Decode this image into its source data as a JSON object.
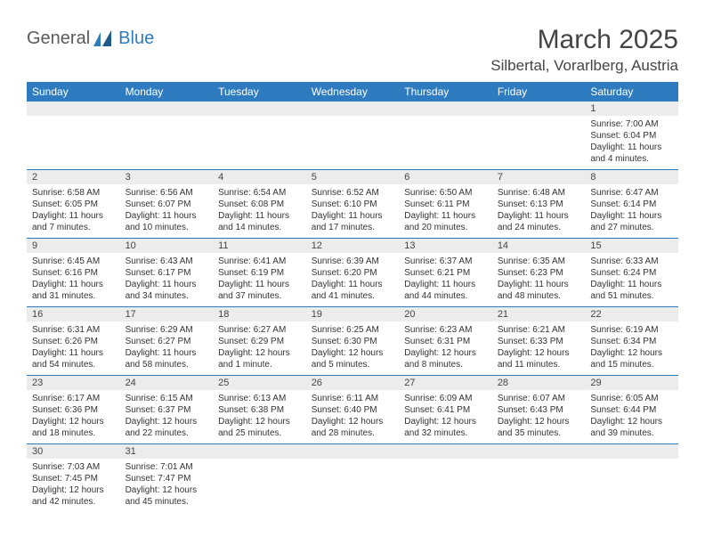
{
  "brand": {
    "part1": "General",
    "part2": "Blue"
  },
  "title": "March 2025",
  "location": "Silbertal, Vorarlberg, Austria",
  "colors": {
    "header_bg": "#2f7bbf",
    "header_fg": "#ffffff",
    "num_bg": "#ececec",
    "border": "#2f7bbf"
  },
  "day_names": [
    "Sunday",
    "Monday",
    "Tuesday",
    "Wednesday",
    "Thursday",
    "Friday",
    "Saturday"
  ],
  "weeks": [
    [
      null,
      null,
      null,
      null,
      null,
      null,
      {
        "n": "1",
        "sr": "Sunrise: 7:00 AM",
        "ss": "Sunset: 6:04 PM",
        "dl1": "Daylight: 11 hours",
        "dl2": "and 4 minutes."
      }
    ],
    [
      {
        "n": "2",
        "sr": "Sunrise: 6:58 AM",
        "ss": "Sunset: 6:05 PM",
        "dl1": "Daylight: 11 hours",
        "dl2": "and 7 minutes."
      },
      {
        "n": "3",
        "sr": "Sunrise: 6:56 AM",
        "ss": "Sunset: 6:07 PM",
        "dl1": "Daylight: 11 hours",
        "dl2": "and 10 minutes."
      },
      {
        "n": "4",
        "sr": "Sunrise: 6:54 AM",
        "ss": "Sunset: 6:08 PM",
        "dl1": "Daylight: 11 hours",
        "dl2": "and 14 minutes."
      },
      {
        "n": "5",
        "sr": "Sunrise: 6:52 AM",
        "ss": "Sunset: 6:10 PM",
        "dl1": "Daylight: 11 hours",
        "dl2": "and 17 minutes."
      },
      {
        "n": "6",
        "sr": "Sunrise: 6:50 AM",
        "ss": "Sunset: 6:11 PM",
        "dl1": "Daylight: 11 hours",
        "dl2": "and 20 minutes."
      },
      {
        "n": "7",
        "sr": "Sunrise: 6:48 AM",
        "ss": "Sunset: 6:13 PM",
        "dl1": "Daylight: 11 hours",
        "dl2": "and 24 minutes."
      },
      {
        "n": "8",
        "sr": "Sunrise: 6:47 AM",
        "ss": "Sunset: 6:14 PM",
        "dl1": "Daylight: 11 hours",
        "dl2": "and 27 minutes."
      }
    ],
    [
      {
        "n": "9",
        "sr": "Sunrise: 6:45 AM",
        "ss": "Sunset: 6:16 PM",
        "dl1": "Daylight: 11 hours",
        "dl2": "and 31 minutes."
      },
      {
        "n": "10",
        "sr": "Sunrise: 6:43 AM",
        "ss": "Sunset: 6:17 PM",
        "dl1": "Daylight: 11 hours",
        "dl2": "and 34 minutes."
      },
      {
        "n": "11",
        "sr": "Sunrise: 6:41 AM",
        "ss": "Sunset: 6:19 PM",
        "dl1": "Daylight: 11 hours",
        "dl2": "and 37 minutes."
      },
      {
        "n": "12",
        "sr": "Sunrise: 6:39 AM",
        "ss": "Sunset: 6:20 PM",
        "dl1": "Daylight: 11 hours",
        "dl2": "and 41 minutes."
      },
      {
        "n": "13",
        "sr": "Sunrise: 6:37 AM",
        "ss": "Sunset: 6:21 PM",
        "dl1": "Daylight: 11 hours",
        "dl2": "and 44 minutes."
      },
      {
        "n": "14",
        "sr": "Sunrise: 6:35 AM",
        "ss": "Sunset: 6:23 PM",
        "dl1": "Daylight: 11 hours",
        "dl2": "and 48 minutes."
      },
      {
        "n": "15",
        "sr": "Sunrise: 6:33 AM",
        "ss": "Sunset: 6:24 PM",
        "dl1": "Daylight: 11 hours",
        "dl2": "and 51 minutes."
      }
    ],
    [
      {
        "n": "16",
        "sr": "Sunrise: 6:31 AM",
        "ss": "Sunset: 6:26 PM",
        "dl1": "Daylight: 11 hours",
        "dl2": "and 54 minutes."
      },
      {
        "n": "17",
        "sr": "Sunrise: 6:29 AM",
        "ss": "Sunset: 6:27 PM",
        "dl1": "Daylight: 11 hours",
        "dl2": "and 58 minutes."
      },
      {
        "n": "18",
        "sr": "Sunrise: 6:27 AM",
        "ss": "Sunset: 6:29 PM",
        "dl1": "Daylight: 12 hours",
        "dl2": "and 1 minute."
      },
      {
        "n": "19",
        "sr": "Sunrise: 6:25 AM",
        "ss": "Sunset: 6:30 PM",
        "dl1": "Daylight: 12 hours",
        "dl2": "and 5 minutes."
      },
      {
        "n": "20",
        "sr": "Sunrise: 6:23 AM",
        "ss": "Sunset: 6:31 PM",
        "dl1": "Daylight: 12 hours",
        "dl2": "and 8 minutes."
      },
      {
        "n": "21",
        "sr": "Sunrise: 6:21 AM",
        "ss": "Sunset: 6:33 PM",
        "dl1": "Daylight: 12 hours",
        "dl2": "and 11 minutes."
      },
      {
        "n": "22",
        "sr": "Sunrise: 6:19 AM",
        "ss": "Sunset: 6:34 PM",
        "dl1": "Daylight: 12 hours",
        "dl2": "and 15 minutes."
      }
    ],
    [
      {
        "n": "23",
        "sr": "Sunrise: 6:17 AM",
        "ss": "Sunset: 6:36 PM",
        "dl1": "Daylight: 12 hours",
        "dl2": "and 18 minutes."
      },
      {
        "n": "24",
        "sr": "Sunrise: 6:15 AM",
        "ss": "Sunset: 6:37 PM",
        "dl1": "Daylight: 12 hours",
        "dl2": "and 22 minutes."
      },
      {
        "n": "25",
        "sr": "Sunrise: 6:13 AM",
        "ss": "Sunset: 6:38 PM",
        "dl1": "Daylight: 12 hours",
        "dl2": "and 25 minutes."
      },
      {
        "n": "26",
        "sr": "Sunrise: 6:11 AM",
        "ss": "Sunset: 6:40 PM",
        "dl1": "Daylight: 12 hours",
        "dl2": "and 28 minutes."
      },
      {
        "n": "27",
        "sr": "Sunrise: 6:09 AM",
        "ss": "Sunset: 6:41 PM",
        "dl1": "Daylight: 12 hours",
        "dl2": "and 32 minutes."
      },
      {
        "n": "28",
        "sr": "Sunrise: 6:07 AM",
        "ss": "Sunset: 6:43 PM",
        "dl1": "Daylight: 12 hours",
        "dl2": "and 35 minutes."
      },
      {
        "n": "29",
        "sr": "Sunrise: 6:05 AM",
        "ss": "Sunset: 6:44 PM",
        "dl1": "Daylight: 12 hours",
        "dl2": "and 39 minutes."
      }
    ],
    [
      {
        "n": "30",
        "sr": "Sunrise: 7:03 AM",
        "ss": "Sunset: 7:45 PM",
        "dl1": "Daylight: 12 hours",
        "dl2": "and 42 minutes."
      },
      {
        "n": "31",
        "sr": "Sunrise: 7:01 AM",
        "ss": "Sunset: 7:47 PM",
        "dl1": "Daylight: 12 hours",
        "dl2": "and 45 minutes."
      },
      null,
      null,
      null,
      null,
      null
    ]
  ]
}
